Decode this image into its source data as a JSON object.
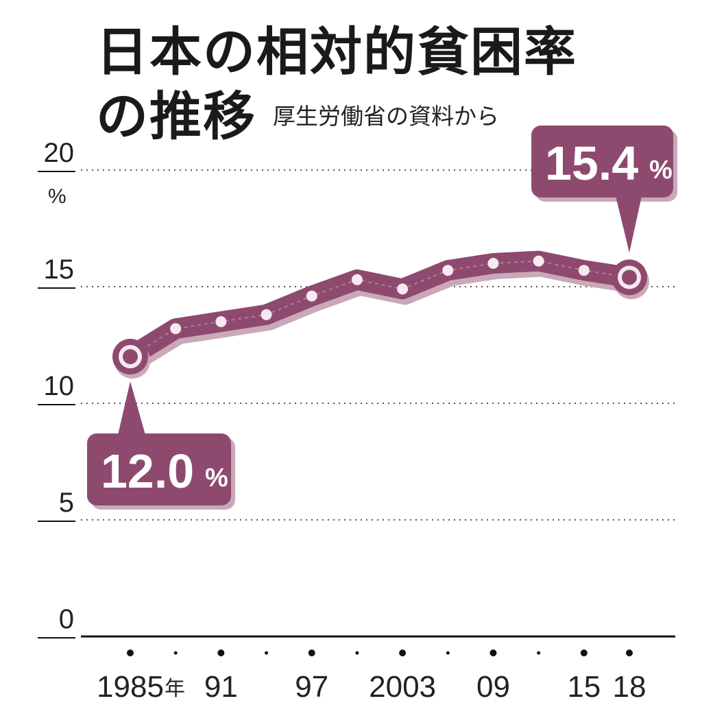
{
  "header": {
    "title_line1": "日本の相対的貧困率",
    "title_line2": "の推移",
    "source": "厚生労働省の資料から"
  },
  "chart_data": {
    "type": "line",
    "title": "日本の相対的貧困率の推移",
    "source": "厚生労働省の資料から",
    "y_unit": "%",
    "x_unit_suffix": "年",
    "ylim": [
      0,
      20
    ],
    "y_ticks": [
      0,
      5,
      10,
      15,
      20
    ],
    "grid": true,
    "x": [
      1985,
      1988,
      1991,
      1994,
      1997,
      2000,
      2003,
      2006,
      2009,
      2012,
      2015,
      2018
    ],
    "x_tick_labels": [
      {
        "x": 1985,
        "label": "1985",
        "suffix": "年"
      },
      {
        "x": 1991,
        "label": "91"
      },
      {
        "x": 1997,
        "label": "97"
      },
      {
        "x": 2003,
        "label": "2003"
      },
      {
        "x": 2009,
        "label": "09"
      },
      {
        "x": 2015,
        "label": "15"
      },
      {
        "x": 2018,
        "label": "18"
      }
    ],
    "series": [
      {
        "values": [
          12.0,
          13.2,
          13.5,
          13.8,
          14.6,
          15.3,
          14.9,
          15.7,
          16.0,
          16.1,
          15.7,
          15.4
        ]
      }
    ],
    "annotations": [
      {
        "x": 1985,
        "value": "12.0",
        "unit": "%"
      },
      {
        "x": 2018,
        "value": "15.4",
        "unit": "%"
      }
    ],
    "colors": {
      "line": "#8e4a6e",
      "line_dark": "#6b3553",
      "shadow": "#c9a9b8",
      "point": "#f6e9ef",
      "grid": "#555555"
    }
  }
}
